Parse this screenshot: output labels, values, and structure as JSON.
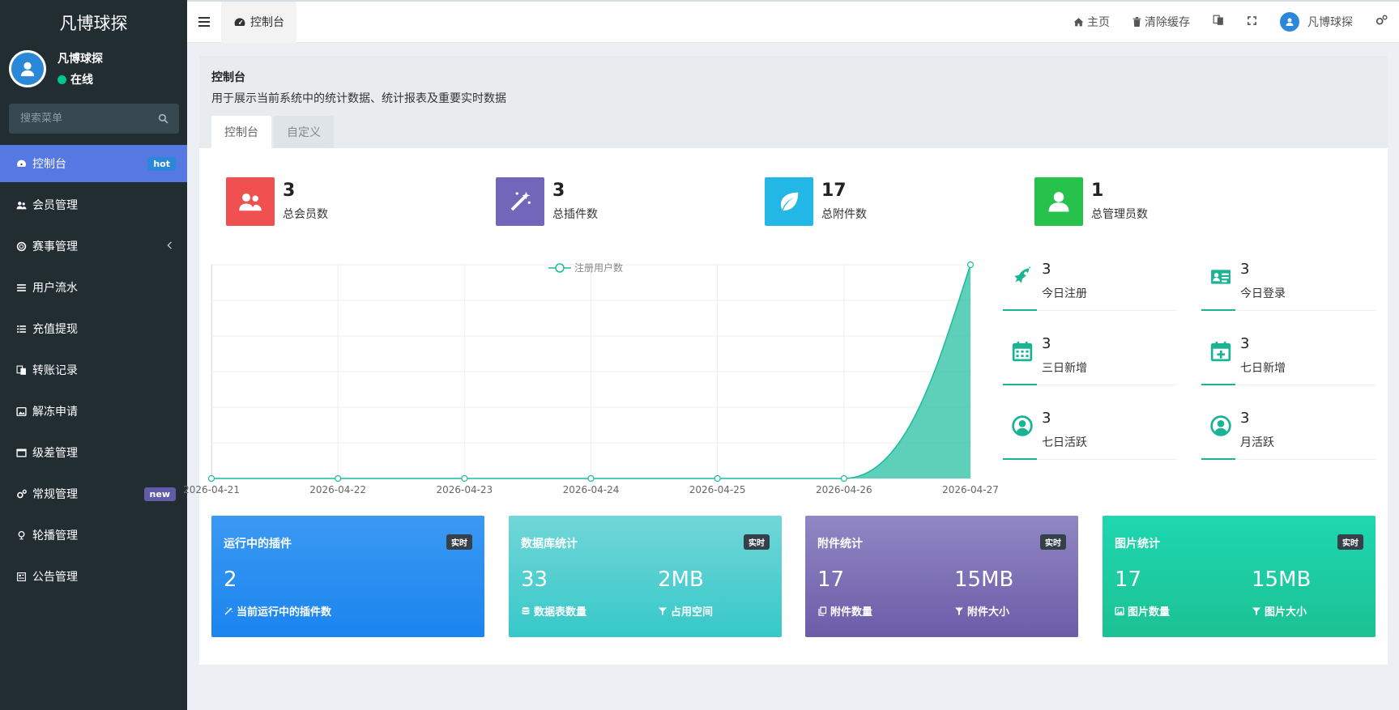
{
  "sidebar": {
    "brand": "凡博球探",
    "user_name": "凡博球探",
    "user_status": "在线",
    "search_placeholder": "搜索菜单",
    "items": [
      {
        "label": "控制台",
        "icon": "dashboard-icon",
        "badge": "hot"
      },
      {
        "label": "会员管理",
        "icon": "users-icon"
      },
      {
        "label": "赛事管理",
        "icon": "life-ring-icon"
      },
      {
        "label": "用户流水",
        "icon": "list-icon"
      },
      {
        "label": "充值提现",
        "icon": "list-alt-icon"
      },
      {
        "label": "转账记录",
        "icon": "translate-icon"
      },
      {
        "label": "解冻申请",
        "icon": "image-icon"
      },
      {
        "label": "级差管理",
        "icon": "window-icon"
      },
      {
        "label": "常规管理",
        "icon": "cogs-icon",
        "badge": "new"
      },
      {
        "label": "轮播管理",
        "icon": "map-pin-icon"
      },
      {
        "label": "公告管理",
        "icon": "newspaper-icon"
      }
    ]
  },
  "header": {
    "tab_label": "控制台",
    "home_label": "主页",
    "clear_cache_label": "清除缓存",
    "user_name": "凡博球探"
  },
  "page": {
    "title": "控制台",
    "description": "用于展示当前系统中的统计数据、统计报表及重要实时数据",
    "tabs": [
      "控制台",
      "自定义"
    ]
  },
  "stats": [
    {
      "value": "3",
      "label": "总会员数",
      "color": "#f05050",
      "icon": "users-icon"
    },
    {
      "value": "3",
      "label": "总插件数",
      "color": "#7266ba",
      "icon": "magic-icon"
    },
    {
      "value": "17",
      "label": "总附件数",
      "color": "#23b7e5",
      "icon": "leaf-icon"
    },
    {
      "value": "1",
      "label": "总管理员数",
      "color": "#27c24c",
      "icon": "user-icon"
    }
  ],
  "mini_stats": [
    {
      "value": "3",
      "label": "今日注册",
      "icon": "rocket-icon"
    },
    {
      "value": "3",
      "label": "今日登录",
      "icon": "id-card-icon"
    },
    {
      "value": "3",
      "label": "三日新增",
      "icon": "calendar-icon"
    },
    {
      "value": "3",
      "label": "七日新增",
      "icon": "calendar-plus-icon"
    },
    {
      "value": "3",
      "label": "七日活跃",
      "icon": "user-circle-icon"
    },
    {
      "value": "3",
      "label": "月活跃",
      "icon": "user-circle-icon"
    }
  ],
  "cards": [
    {
      "title": "运行中的插件",
      "badge": "实时",
      "v1": "2",
      "l1": "当前运行中的插件数"
    },
    {
      "title": "数据库统计",
      "badge": "实时",
      "v1": "33",
      "l1": "数据表数量",
      "v2": "2MB",
      "l2": "占用空间"
    },
    {
      "title": "附件统计",
      "badge": "实时",
      "v1": "17",
      "l1": "附件数量",
      "v2": "15MB",
      "l2": "附件大小"
    },
    {
      "title": "图片统计",
      "badge": "实时",
      "v1": "17",
      "l1": "图片数量",
      "v2": "15MB",
      "l2": "图片大小"
    }
  ],
  "chart_data": {
    "type": "area",
    "legend": "注册用户数",
    "categories": [
      "2026-04-21",
      "2026-04-22",
      "2026-04-23",
      "2026-04-24",
      "2026-04-25",
      "2026-04-26",
      "2026-04-27"
    ],
    "values": [
      0,
      0,
      0,
      0,
      0,
      0,
      3
    ],
    "ylim": [
      0,
      3
    ],
    "color": "#1abc9c",
    "grid": true,
    "legend_position": "top-center"
  }
}
